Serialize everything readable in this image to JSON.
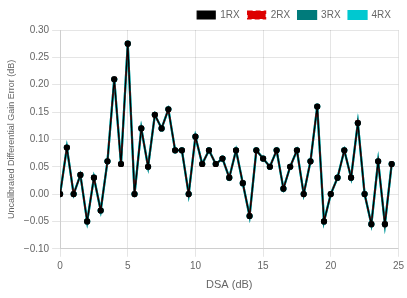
{
  "chart_data": {
    "type": "line",
    "xlabel": "DSA (dB)",
    "ylabel": "Uncalibrated Differential Gain Error (dB)",
    "xlim": [
      0,
      25
    ],
    "ylim": [
      -0.1,
      0.3
    ],
    "xticks": [
      0,
      5,
      10,
      15,
      20,
      25
    ],
    "yticks": [
      {
        "value": -0.1,
        "label": "−0.10"
      },
      {
        "value": -0.05,
        "label": "−0.05"
      },
      {
        "value": 0.0,
        "label": "0.00"
      },
      {
        "value": 0.05,
        "label": "0.05"
      },
      {
        "value": 0.1,
        "label": "0.10"
      },
      {
        "value": 0.15,
        "label": "0.15"
      },
      {
        "value": 0.2,
        "label": "0.20"
      },
      {
        "value": 0.25,
        "label": "0.25"
      },
      {
        "value": 0.3,
        "label": "0.30"
      }
    ],
    "grid": true,
    "legend": "upper right",
    "x": [
      0,
      0.5,
      1,
      1.5,
      2,
      2.5,
      3,
      3.5,
      4,
      4.5,
      5,
      5.5,
      6,
      6.5,
      7,
      7.5,
      8,
      8.5,
      9,
      9.5,
      10,
      10.5,
      11,
      11.5,
      12,
      12.5,
      13,
      13.5,
      14,
      14.5,
      15,
      15.5,
      16,
      16.5,
      17,
      17.5,
      18,
      18.5,
      19,
      19.5,
      20,
      20.5,
      21,
      21.5,
      22,
      22.5,
      23,
      23.5,
      24,
      24.5
    ],
    "series": [
      {
        "name": "4RX",
        "color": "#00c8d0",
        "marker": "circle",
        "line_style": "solid",
        "values": [
          0.0,
          0.085,
          0.0,
          0.035,
          -0.05,
          0.03,
          -0.03,
          0.06,
          0.21,
          0.055,
          0.275,
          0.0,
          0.12,
          0.05,
          0.145,
          0.12,
          0.155,
          0.08,
          0.08,
          0.0,
          0.105,
          0.055,
          0.08,
          0.055,
          0.065,
          0.03,
          0.08,
          0.02,
          -0.04,
          0.08,
          0.065,
          0.05,
          0.08,
          0.01,
          0.05,
          0.08,
          0.0,
          0.06,
          0.16,
          -0.05,
          0.0,
          0.03,
          0.08,
          0.03,
          0.13,
          0.0,
          -0.055,
          0.06,
          -0.055,
          0.055
        ]
      },
      {
        "name": "3RX",
        "color": "#007b7b",
        "marker": "circle",
        "line_style": "solid",
        "values": [
          0.0,
          0.085,
          0.0,
          0.035,
          -0.05,
          0.03,
          -0.03,
          0.06,
          0.21,
          0.055,
          0.275,
          0.0,
          0.12,
          0.05,
          0.145,
          0.12,
          0.155,
          0.08,
          0.08,
          0.0,
          0.105,
          0.055,
          0.08,
          0.055,
          0.065,
          0.03,
          0.08,
          0.02,
          -0.04,
          0.08,
          0.065,
          0.05,
          0.08,
          0.01,
          0.05,
          0.08,
          0.0,
          0.06,
          0.16,
          -0.05,
          0.0,
          0.03,
          0.08,
          0.03,
          0.13,
          0.0,
          -0.055,
          0.06,
          -0.055,
          0.055
        ]
      },
      {
        "name": "2RX",
        "color": "#dd0000",
        "marker": "square",
        "line_style": "dashed",
        "values": [
          0.0,
          0.085,
          0.0,
          0.035,
          -0.05,
          0.03,
          -0.03,
          0.06,
          0.21,
          0.055,
          0.275,
          0.0,
          0.12,
          0.05,
          0.145,
          0.12,
          0.155,
          0.08,
          0.08,
          0.0,
          0.105,
          0.055,
          0.08,
          0.055,
          0.065,
          0.03,
          0.08,
          0.02,
          -0.04,
          0.08,
          0.065,
          0.05,
          0.08,
          0.01,
          0.05,
          0.08,
          0.0,
          0.06,
          0.16,
          -0.05,
          0.0,
          0.03,
          0.08,
          0.03,
          0.13,
          0.0,
          -0.055,
          0.06,
          -0.055,
          0.055
        ]
      },
      {
        "name": "1RX",
        "color": "#000000",
        "marker": "circle",
        "line_style": "solid",
        "values": [
          0.0,
          0.085,
          0.0,
          0.035,
          -0.05,
          0.03,
          -0.03,
          0.06,
          0.21,
          0.055,
          0.275,
          0.0,
          0.12,
          0.05,
          0.145,
          0.12,
          0.155,
          0.08,
          0.08,
          0.0,
          0.105,
          0.055,
          0.08,
          0.055,
          0.065,
          0.03,
          0.08,
          0.02,
          -0.04,
          0.08,
          0.065,
          0.05,
          0.08,
          0.01,
          0.05,
          0.08,
          0.0,
          0.06,
          0.16,
          -0.05,
          0.0,
          0.03,
          0.08,
          0.03,
          0.13,
          0.0,
          -0.055,
          0.06,
          -0.055,
          0.055
        ]
      }
    ]
  }
}
